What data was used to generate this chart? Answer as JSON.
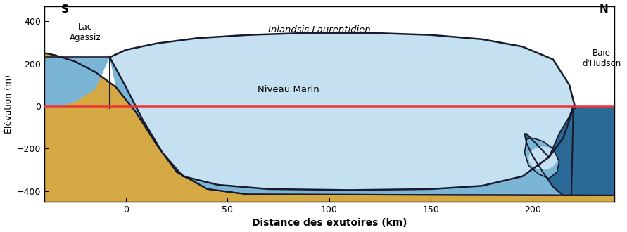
{
  "xlabel": "Distance des exutoires (km)",
  "ylabel": "Élévation (m)",
  "xlim": [
    -40,
    240
  ],
  "ylim": [
    -450,
    470
  ],
  "yticks": [
    -400,
    -200,
    0,
    200,
    400
  ],
  "xticks": [
    0,
    50,
    100,
    150,
    200
  ],
  "label_S": "S",
  "label_N": "N",
  "label_lac": "Lac\nAgassiz",
  "label_inlandsis": "Inlandsis Laurentidien",
  "label_niveau": "Niveau Marin",
  "label_baie": "Baie\nd'Hudson",
  "color_ground": "#D4A843",
  "color_ice_light": "#C5E0F0",
  "color_ice_medium": "#7AB5D5",
  "color_ice_dark": "#2B6A96",
  "color_sea_level_line": "#EE3333",
  "color_outline": "#1A1A2E",
  "background_color": "#FFFFFF"
}
